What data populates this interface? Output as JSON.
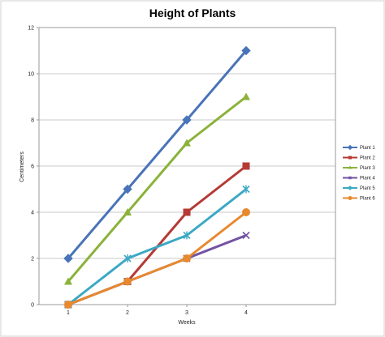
{
  "chart_data": {
    "type": "line",
    "title": "Height of Plants",
    "xlabel": "Weeks",
    "ylabel": "Centimeters",
    "categories": [
      "1",
      "2",
      "3",
      "4"
    ],
    "ylim": [
      0,
      12
    ],
    "yticks": [
      "0",
      "2",
      "4",
      "6",
      "8",
      "10",
      "12"
    ],
    "grid": "horizontal",
    "legend_position": "right",
    "series": [
      {
        "name": "Plant 1",
        "values": [
          2,
          5,
          8,
          11
        ],
        "color": "#4a74b8",
        "marker": "diamond"
      },
      {
        "name": "Plant 2",
        "values": [
          0,
          1,
          4,
          6
        ],
        "color": "#b53a36",
        "marker": "square"
      },
      {
        "name": "Plant 3",
        "values": [
          1,
          4,
          7,
          9
        ],
        "color": "#8bb23a",
        "marker": "triangle"
      },
      {
        "name": "Plant 4",
        "values": [
          0,
          1,
          2,
          3
        ],
        "color": "#7253a3",
        "marker": "x"
      },
      {
        "name": "Plant 5",
        "values": [
          0,
          2,
          3,
          5
        ],
        "color": "#3ca8c4",
        "marker": "asterisk"
      },
      {
        "name": "Plant 6",
        "values": [
          0,
          1,
          2,
          4
        ],
        "color": "#e8892e",
        "marker": "circle"
      }
    ]
  }
}
